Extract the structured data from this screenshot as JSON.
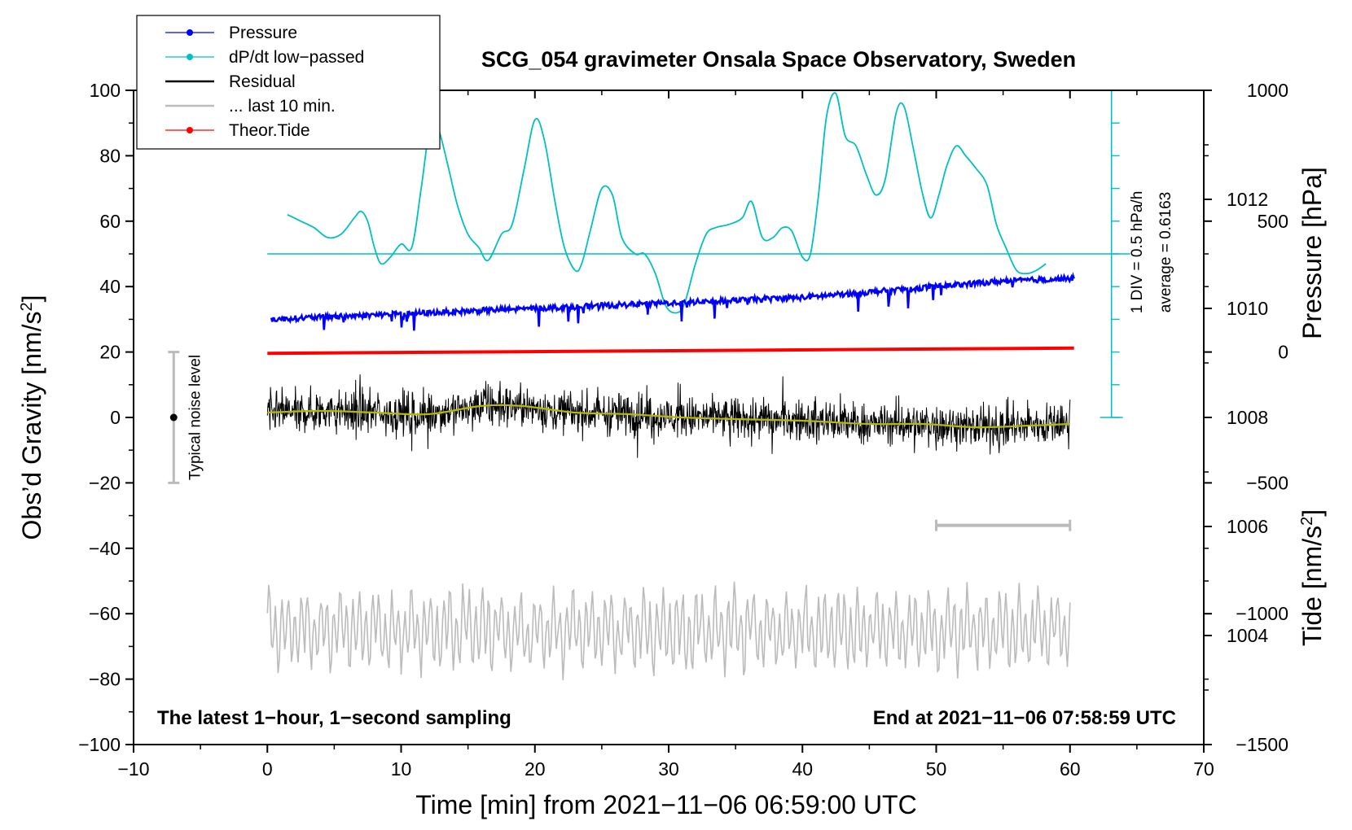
{
  "chart_data": {
    "type": "line",
    "title": "SCG_054 gravimeter Onsala Space Observatory, Sweden",
    "xlabel": "Time [min] from 2021−11−06 06:59:00 UTC",
    "ylabel_main": "Obs’d Gravity [nm/s",
    "ylabel_sup": "2",
    "ylabel_close": "]",
    "ylabel_pressure": "Pressure [hPa]",
    "ylabel_tide": "Tide [nm/s",
    "ylabel_tide_sup": "2",
    "ylabel_tide_close": "]",
    "xlim": [
      -10,
      70
    ],
    "ylim": [
      -100,
      100
    ],
    "pressure_lim": [
      1002,
      1014
    ],
    "tide_lim": [
      -1500,
      1000
    ],
    "x_ticks": [
      {
        "v": -10,
        "label": "−10"
      },
      {
        "v": 0,
        "label": "0"
      },
      {
        "v": 10,
        "label": "10"
      },
      {
        "v": 20,
        "label": "20"
      },
      {
        "v": 30,
        "label": "30"
      },
      {
        "v": 40,
        "label": "40"
      },
      {
        "v": 50,
        "label": "50"
      },
      {
        "v": 60,
        "label": "60"
      },
      {
        "v": 70,
        "label": "70"
      }
    ],
    "y_ticks": [
      {
        "v": 100,
        "label": "100"
      },
      {
        "v": 80,
        "label": "80"
      },
      {
        "v": 60,
        "label": "60"
      },
      {
        "v": 40,
        "label": "40"
      },
      {
        "v": 20,
        "label": "20"
      },
      {
        "v": 0,
        "label": "0"
      },
      {
        "v": -20,
        "label": "−20"
      },
      {
        "v": -40,
        "label": "−40"
      },
      {
        "v": -60,
        "label": "−60"
      },
      {
        "v": -80,
        "label": "−80"
      },
      {
        "v": -100,
        "label": "−100"
      }
    ],
    "pressure_ticks": [
      {
        "v": 1012,
        "label": "1012"
      },
      {
        "v": 1010,
        "label": "1010"
      },
      {
        "v": 1008,
        "label": "1008"
      },
      {
        "v": 1006,
        "label": "1006"
      },
      {
        "v": 1004,
        "label": "1004"
      }
    ],
    "tide_ticks": [
      {
        "v": 1000,
        "label": "1000"
      },
      {
        "v": 500,
        "label": "500"
      },
      {
        "v": 0,
        "label": "0"
      },
      {
        "v": -500,
        "label": "−500"
      },
      {
        "v": -1000,
        "label": "−1000"
      },
      {
        "v": -1500,
        "label": "−1500"
      }
    ],
    "series": [
      {
        "name": "Pressure",
        "color": "#0000ff",
        "axis": "pressure",
        "x": [
          0.3,
          5,
          10,
          15,
          20,
          25,
          30,
          35,
          40,
          45,
          50,
          55,
          60.3
        ],
        "y": [
          1009.8,
          1009.85,
          1009.9,
          1009.95,
          1010.0,
          1010.05,
          1010.1,
          1010.15,
          1010.2,
          1010.3,
          1010.4,
          1010.5,
          1010.55
        ]
      },
      {
        "name": "dP/dt low−passed",
        "color": "#00c0c0",
        "axis": "main",
        "x": [
          1.5,
          2.5,
          3.5,
          4.5,
          5.5,
          6.5,
          7.0,
          7.5,
          8.0,
          8.5,
          9.2,
          10.0,
          10.8,
          11.5,
          12.2,
          12.8,
          13.5,
          14.2,
          15.0,
          15.8,
          16.5,
          17.5,
          18.3,
          19.2,
          20.0,
          20.7,
          21.5,
          22.2,
          23.0,
          23.5,
          24.2,
          25.0,
          25.8,
          26.5,
          27.5,
          28.2,
          29.0,
          29.8,
          30.6,
          31.2,
          32.0,
          32.8,
          33.5,
          34.5,
          35.5,
          36.2,
          37.0,
          37.8,
          38.5,
          39.2,
          40.0,
          40.6,
          41.2,
          41.8,
          42.5,
          43.2,
          44.0,
          44.8,
          45.5,
          46.2,
          47.0,
          47.6,
          48.3,
          49.0,
          49.6,
          50.2,
          50.8,
          51.5,
          52.2,
          53.0,
          53.8,
          54.5,
          55.2,
          56.0,
          56.8,
          57.5,
          58.2
        ],
        "y": [
          62,
          60,
          58,
          55,
          56,
          61,
          63,
          60,
          52,
          47,
          49,
          53,
          52,
          70,
          90,
          88,
          77,
          65,
          56,
          52,
          48,
          56,
          59,
          76,
          91,
          85,
          66,
          52,
          45,
          47,
          58,
          70,
          68,
          55,
          50,
          50,
          44,
          34,
          32,
          35,
          47,
          56,
          58,
          59,
          61,
          66,
          55,
          55,
          58,
          57,
          49,
          50,
          68,
          92,
          99,
          86,
          83,
          74,
          68,
          73,
          93,
          95,
          82,
          68,
          61,
          68,
          77,
          83,
          80,
          76,
          71,
          59,
          52,
          45,
          44,
          45,
          47
        ]
      },
      {
        "name": "Residual",
        "color": "#000000",
        "axis": "main",
        "x": [
          0,
          60
        ],
        "y": [
          0,
          0
        ]
      },
      {
        "name": "... last 10 min.",
        "color": "#bbbbbb",
        "axis": "main",
        "x": [
          0,
          60
        ],
        "y": [
          -65,
          -65
        ]
      },
      {
        "name": "Theor.Tide",
        "color": "#ff0000",
        "axis": "tide",
        "x": [
          0,
          60.3
        ],
        "y": [
          -5,
          15
        ]
      }
    ],
    "residual_smooth": {
      "color": "#b8b800",
      "x": [
        0,
        4,
        8,
        12,
        16,
        19,
        23,
        27,
        31,
        35,
        40,
        45,
        49,
        53,
        57,
        60
      ],
      "y": [
        1.5,
        2,
        1.5,
        1,
        3.5,
        3.5,
        1.5,
        1,
        0,
        -0.5,
        -1,
        -2,
        -2,
        -3,
        -2.5,
        -2
      ]
    },
    "reference_line": {
      "y": 50,
      "x_from": 0,
      "x_to": 64.5
    },
    "pressure_scale": {
      "label1": "1 DIV = 0.5 hPa/h",
      "label2": "average = 0.6163"
    },
    "noise_bar": {
      "x": -7,
      "center": 0,
      "half_range": 20,
      "label": "Typical noise level"
    },
    "ten_minute_bar": {
      "x_from": 50,
      "x_to": 60
    },
    "annotations": {
      "bottom_left": "The latest 1−hour, 1−second sampling",
      "bottom_right": "End at 2021−11−06 07:58:59 UTC"
    },
    "legend": [
      {
        "label": "Pressure",
        "color": "#0000ff",
        "marker": true
      },
      {
        "label": "dP/dt low−passed",
        "color": "#00c0c0",
        "marker": true
      },
      {
        "label": "Residual",
        "color": "#000000",
        "marker": false
      },
      {
        "label": "... last 10 min.",
        "color": "#bbbbbb",
        "marker": false
      },
      {
        "label": "Theor.Tide",
        "color": "#ff0000",
        "marker": true
      }
    ]
  }
}
